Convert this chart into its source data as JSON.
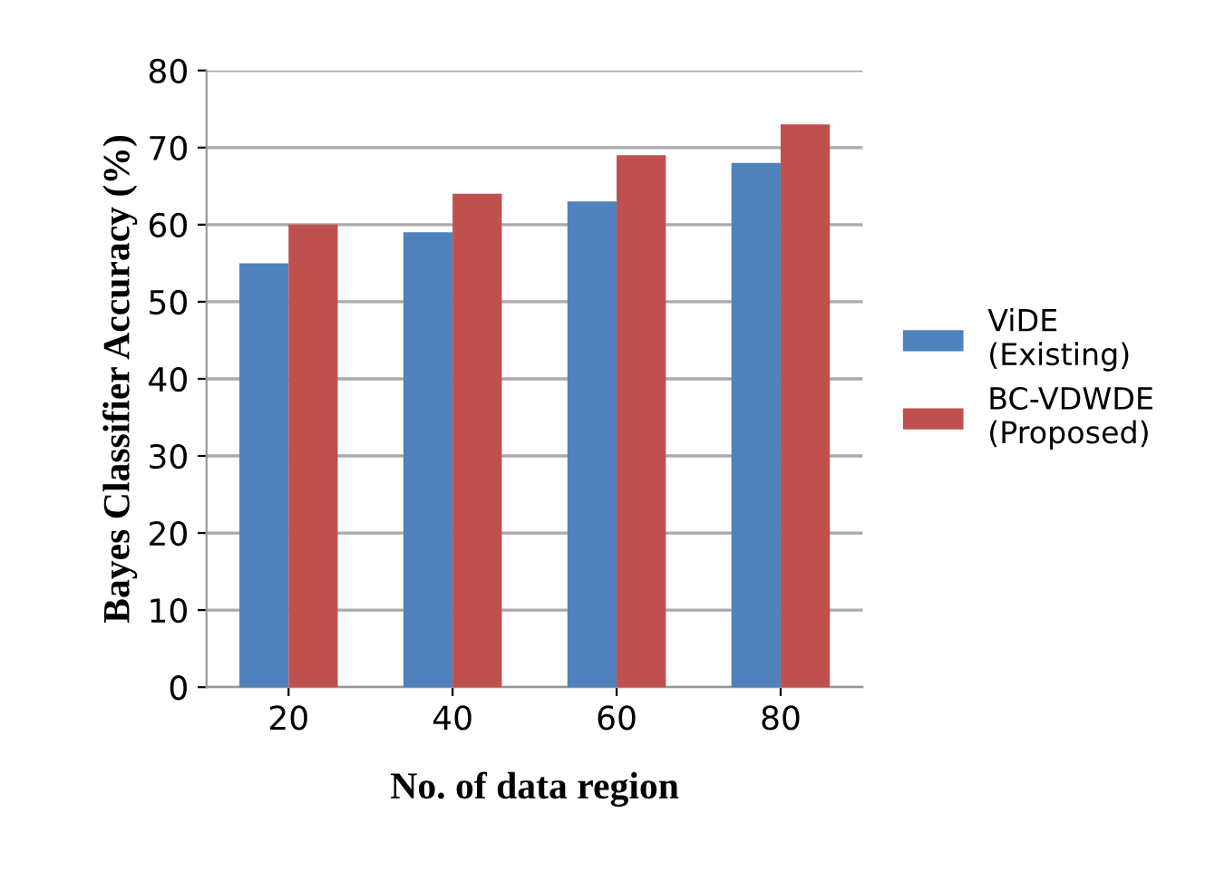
{
  "chart_data": {
    "type": "bar",
    "xlabel": "No. of data region",
    "ylabel": "Bayes Classifier Accuracy (%)",
    "categories": [
      "20",
      "40",
      "60",
      "80"
    ],
    "series": [
      {
        "name": "ViDE\n(Existing)",
        "color": "#4f81bd",
        "values": [
          55,
          59,
          63,
          68
        ]
      },
      {
        "name": "BC-VDWDE\n(Proposed)",
        "color": "#c0504d",
        "values": [
          60,
          64,
          69,
          73
        ]
      }
    ],
    "ylim": [
      0,
      80
    ],
    "yticks": [
      0,
      10,
      20,
      30,
      40,
      50,
      60,
      70,
      80
    ],
    "grid": "y",
    "legend": "right"
  }
}
